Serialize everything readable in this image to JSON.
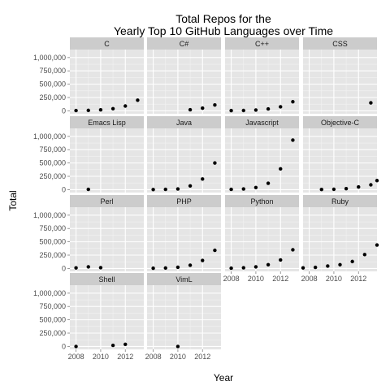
{
  "chart_data": {
    "type": "scatter",
    "title_lines": [
      "Total Repos for the",
      "Yearly Top 10 GitHub Languages over Time"
    ],
    "xlabel": "Year",
    "ylabel": "Total",
    "xlim": [
      2007.5,
      2013.5
    ],
    "ylim": [
      -55000,
      1150000
    ],
    "x_ticks": [
      2008,
      2010,
      2012
    ],
    "x_tick_labels": [
      "2008",
      "2010",
      "2012"
    ],
    "y_ticks": [
      0,
      250000,
      500000,
      750000,
      1000000
    ],
    "y_tick_labels": [
      "0",
      "250,000",
      "500,000",
      "750,000",
      "1,000,000"
    ],
    "grid": true,
    "panels": [
      {
        "name": "C",
        "points": [
          [
            2008,
            5000
          ],
          [
            2009,
            8000
          ],
          [
            2010,
            18000
          ],
          [
            2011,
            40000
          ],
          [
            2012,
            90000
          ],
          [
            2013,
            200000
          ]
        ]
      },
      {
        "name": "C#",
        "points": [
          [
            2011,
            20000
          ],
          [
            2012,
            50000
          ],
          [
            2013,
            110000
          ]
        ]
      },
      {
        "name": "C++",
        "points": [
          [
            2008,
            4000
          ],
          [
            2009,
            6000
          ],
          [
            2010,
            15000
          ],
          [
            2011,
            35000
          ],
          [
            2012,
            75000
          ],
          [
            2013,
            170000
          ]
        ]
      },
      {
        "name": "CSS",
        "points": [
          [
            2013,
            150000
          ]
        ]
      },
      {
        "name": "Emacs Lisp",
        "points": [
          [
            2009,
            5000
          ]
        ]
      },
      {
        "name": "Java",
        "points": [
          [
            2008,
            2000
          ],
          [
            2009,
            5000
          ],
          [
            2010,
            12000
          ],
          [
            2011,
            70000
          ],
          [
            2012,
            200000
          ],
          [
            2013,
            500000
          ]
        ]
      },
      {
        "name": "Javascript",
        "points": [
          [
            2008,
            5000
          ],
          [
            2009,
            12000
          ],
          [
            2010,
            40000
          ],
          [
            2011,
            120000
          ],
          [
            2012,
            390000
          ],
          [
            2013,
            930000
          ]
        ]
      },
      {
        "name": "Objective-C",
        "points": [
          [
            2009,
            3000
          ],
          [
            2010,
            6000
          ],
          [
            2011,
            18000
          ],
          [
            2012,
            50000
          ],
          [
            2013,
            90000
          ],
          [
            2013.5,
            170000
          ]
        ]
      },
      {
        "name": "Perl",
        "points": [
          [
            2008,
            10000
          ],
          [
            2009,
            30000
          ],
          [
            2010,
            15000
          ]
        ]
      },
      {
        "name": "PHP",
        "points": [
          [
            2008,
            4000
          ],
          [
            2009,
            8000
          ],
          [
            2010,
            22000
          ],
          [
            2011,
            60000
          ],
          [
            2012,
            150000
          ],
          [
            2013,
            340000
          ]
        ]
      },
      {
        "name": "Python",
        "points": [
          [
            2008,
            5000
          ],
          [
            2009,
            12000
          ],
          [
            2010,
            30000
          ],
          [
            2011,
            70000
          ],
          [
            2012,
            160000
          ],
          [
            2013,
            350000
          ]
        ]
      },
      {
        "name": "Ruby",
        "points": [
          [
            2007.5,
            10000
          ],
          [
            2008.5,
            20000
          ],
          [
            2009.5,
            45000
          ],
          [
            2010.5,
            70000
          ],
          [
            2011.5,
            130000
          ],
          [
            2012.5,
            260000
          ],
          [
            2013.5,
            440000
          ]
        ]
      },
      {
        "name": "Shell",
        "points": [
          [
            2008,
            0
          ],
          [
            2011,
            20000
          ],
          [
            2012,
            40000
          ]
        ]
      },
      {
        "name": "VimL",
        "points": [
          [
            2010,
            0
          ]
        ]
      }
    ]
  }
}
